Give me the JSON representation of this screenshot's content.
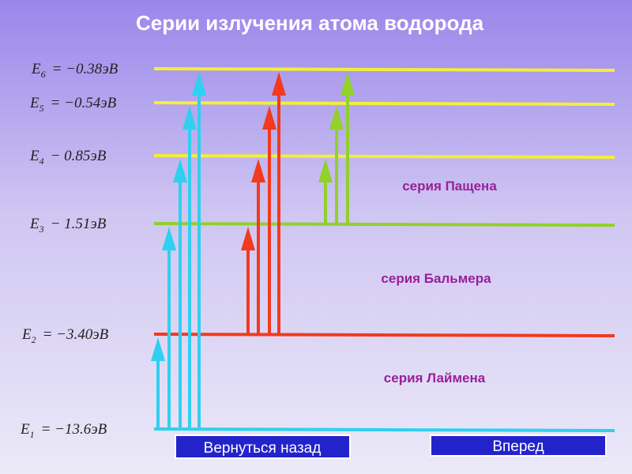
{
  "title": "Серии излучения атома водорода",
  "levels": [
    {
      "symbol": "E",
      "index": "6",
      "value": "= −0.38эВ"
    },
    {
      "symbol": "E",
      "index": "5",
      "value": "= −0.54эВ"
    },
    {
      "symbol": "E",
      "index": "4",
      "value": "− 0.85эВ"
    },
    {
      "symbol": "E",
      "index": "3",
      "value": "− 1.51эВ"
    },
    {
      "symbol": "E",
      "index": "2",
      "value": "= −3.40эВ"
    },
    {
      "symbol": "E",
      "index": "1",
      "value": "= −13.6эВ"
    }
  ],
  "series_labels": [
    "серия Пащена",
    "серия Бальмера",
    "серия Лаймена"
  ],
  "buttons": [
    "Вернуться назад",
    "Вперед"
  ]
}
